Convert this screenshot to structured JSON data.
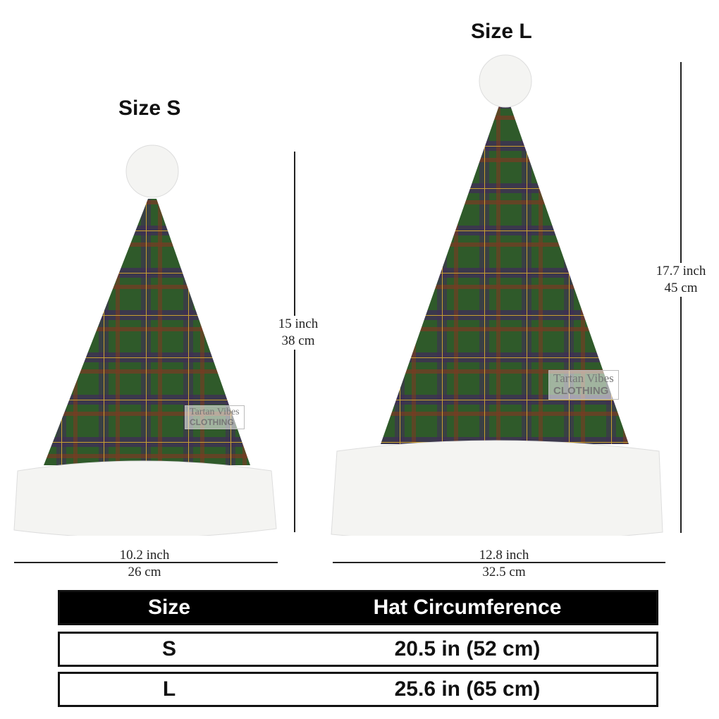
{
  "hats": [
    {
      "title": "Size S",
      "height": "15 inch",
      "height_cm": "38 cm",
      "width": "10.2 inch",
      "width_cm": "26 cm"
    },
    {
      "title": "Size L",
      "height": "17.7 inch",
      "height_cm": "45 cm",
      "width": "12.8 inch",
      "width_cm": "32.5 cm"
    }
  ],
  "watermark": {
    "brand": "Tartan Vibes",
    "sub": "CLOTHING"
  },
  "table": {
    "headers": [
      "Size",
      "Hat Circumference"
    ],
    "rows": [
      [
        "S",
        "20.5 in (52 cm)"
      ],
      [
        "L",
        "25.6 in (65 cm)"
      ]
    ]
  },
  "colors": {
    "tartan_green": "#2f5a2a",
    "tartan_purple": "#3f2f55",
    "tartan_red": "#7a3a22",
    "fur": "#f4f4f2"
  }
}
